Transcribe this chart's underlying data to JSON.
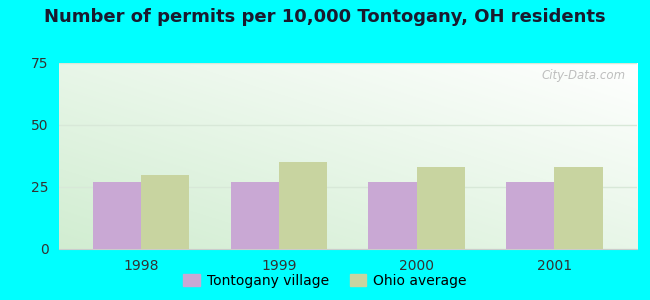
{
  "title": "Number of permits per 10,000 Tontogany, OH residents",
  "years": [
    "1998",
    "1999",
    "2000",
    "2001"
  ],
  "tontogany_values": [
    27,
    27,
    27,
    27
  ],
  "ohio_values": [
    30,
    35,
    33,
    33
  ],
  "tontogany_color": "#c9a8d4",
  "ohio_color": "#c8d4a0",
  "ylim": [
    0,
    75
  ],
  "yticks": [
    0,
    25,
    50,
    75
  ],
  "outer_bg": "#00ffff",
  "bar_width": 0.35,
  "legend_tontogany": "Tontogany village",
  "legend_ohio": "Ohio average",
  "title_fontsize": 13,
  "tick_fontsize": 10,
  "legend_fontsize": 10,
  "watermark": "City-Data.com",
  "bg_colors": [
    "#d8eed8",
    "#f0faf0",
    "#ffffff",
    "#ffffff"
  ],
  "grid_color": "#d8e8d8",
  "spine_color": "#cccccc"
}
